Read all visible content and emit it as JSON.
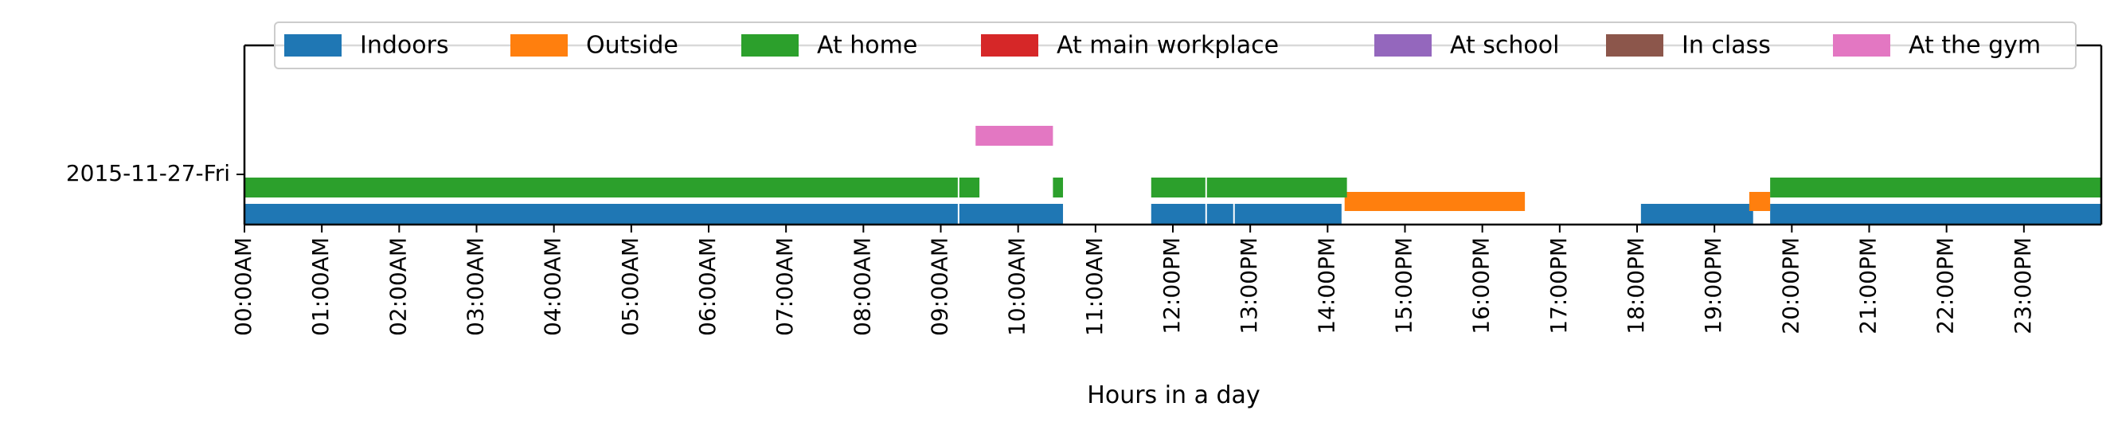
{
  "chart_data": {
    "type": "timeline",
    "title": "",
    "xlabel": "Hours in a day",
    "ylabel": "",
    "y_categories": [
      "2015-11-27-Fri"
    ],
    "x_unit": "hour",
    "xlim": [
      0,
      24
    ],
    "x_ticks": [
      {
        "value": 0,
        "label": "00:00AM"
      },
      {
        "value": 1,
        "label": "01:00AM"
      },
      {
        "value": 2,
        "label": "02:00AM"
      },
      {
        "value": 3,
        "label": "03:00AM"
      },
      {
        "value": 4,
        "label": "04:00AM"
      },
      {
        "value": 5,
        "label": "05:00AM"
      },
      {
        "value": 6,
        "label": "06:00AM"
      },
      {
        "value": 7,
        "label": "07:00AM"
      },
      {
        "value": 8,
        "label": "08:00AM"
      },
      {
        "value": 9,
        "label": "09:00AM"
      },
      {
        "value": 10,
        "label": "10:00AM"
      },
      {
        "value": 11,
        "label": "11:00AM"
      },
      {
        "value": 12,
        "label": "12:00PM"
      },
      {
        "value": 13,
        "label": "13:00PM"
      },
      {
        "value": 14,
        "label": "14:00PM"
      },
      {
        "value": 15,
        "label": "15:00PM"
      },
      {
        "value": 16,
        "label": "16:00PM"
      },
      {
        "value": 17,
        "label": "17:00PM"
      },
      {
        "value": 18,
        "label": "18:00PM"
      },
      {
        "value": 19,
        "label": "19:00PM"
      },
      {
        "value": 20,
        "label": "20:00PM"
      },
      {
        "value": 21,
        "label": "21:00PM"
      },
      {
        "value": 22,
        "label": "22:00PM"
      },
      {
        "value": 23,
        "label": "23:00PM"
      }
    ],
    "legend_position": "top",
    "series": [
      {
        "name": "Indoors",
        "color": "#1f77b4",
        "intervals": [
          [
            0.0,
            9.22
          ],
          [
            9.24,
            10.58
          ],
          [
            11.72,
            12.42
          ],
          [
            12.44,
            12.78
          ],
          [
            12.8,
            14.18
          ],
          [
            18.05,
            19.5
          ],
          [
            19.72,
            24.0
          ]
        ]
      },
      {
        "name": "Outside",
        "color": "#ff7f0e",
        "intervals": [
          [
            14.22,
            16.55
          ],
          [
            19.45,
            19.72
          ]
        ]
      },
      {
        "name": "At home",
        "color": "#2ca02c",
        "intervals": [
          [
            0.0,
            9.22
          ],
          [
            9.24,
            9.5
          ],
          [
            10.45,
            10.58
          ],
          [
            11.72,
            12.42
          ],
          [
            12.44,
            14.25
          ],
          [
            19.72,
            24.0
          ]
        ]
      },
      {
        "name": "At main workplace",
        "color": "#d62728",
        "intervals": []
      },
      {
        "name": "At school",
        "color": "#9467bd",
        "intervals": []
      },
      {
        "name": "In class",
        "color": "#8c564b",
        "intervals": []
      },
      {
        "name": "At the gym",
        "color": "#e377c2",
        "intervals": [
          [
            9.45,
            10.45
          ]
        ]
      }
    ]
  }
}
